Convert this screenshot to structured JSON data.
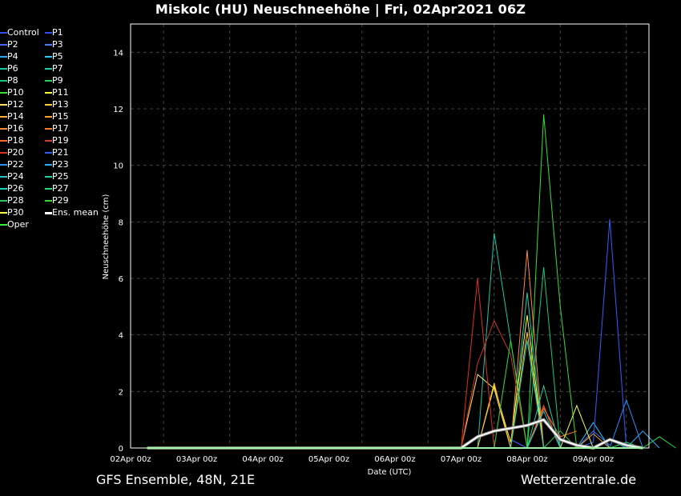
{
  "title": "Miskolc  (HU)  Neuschneehöhe | Fri, 02Apr2021 06Z",
  "footer_left": "GFS Ensemble, 48N, 21E",
  "footer_right": "Wetterzentrale.de",
  "chart_data": {
    "type": "line",
    "title": "Miskolc  (HU)  Neuschneehöhe | Fri, 02Apr2021 06Z",
    "xlabel": "Date (UTC)",
    "ylabel": "Neuschneehöhe (cm)",
    "ylim": [
      0,
      15
    ],
    "xlim_days": [
      0,
      7.75
    ],
    "x_ticks": [
      "02Apr 00z",
      "03Apr 00z",
      "04Apr 00z",
      "05Apr 00z",
      "06Apr 00z",
      "07Apr 00z",
      "08Apr 00z",
      "09Apr 00z"
    ],
    "y_ticks": [
      0,
      2,
      4,
      6,
      8,
      10,
      12,
      14
    ],
    "grid": true,
    "legend_position": "left",
    "series": [
      {
        "name": "Control",
        "color": "#2b4cff",
        "points": []
      },
      {
        "name": "P1",
        "color": "#2b4cff",
        "points": []
      },
      {
        "name": "P2",
        "color": "#3a6cff",
        "points": [
          [
            5.75,
            0.3
          ],
          [
            6.0,
            0
          ]
        ]
      },
      {
        "name": "P3",
        "color": "#3a7dff",
        "points": [
          [
            6.75,
            0
          ],
          [
            7.0,
            0.6
          ],
          [
            7.25,
            0.1
          ]
        ]
      },
      {
        "name": "P4",
        "color": "#2aa8ff",
        "points": [
          [
            7.0,
            0
          ],
          [
            7.25,
            0.3
          ],
          [
            7.5,
            0
          ]
        ]
      },
      {
        "name": "P5",
        "color": "#2ac6ff",
        "points": [
          [
            6.75,
            0
          ],
          [
            7.0,
            0.9
          ],
          [
            7.25,
            0
          ]
        ]
      },
      {
        "name": "P6",
        "color": "#1ac9a8",
        "points": [
          [
            5.25,
            0
          ],
          [
            5.5,
            7.6
          ],
          [
            5.75,
            3.8
          ],
          [
            6.0,
            0
          ]
        ]
      },
      {
        "name": "P7",
        "color": "#1ad0b0",
        "points": [
          [
            5.75,
            0
          ],
          [
            6.0,
            5.5
          ],
          [
            6.25,
            0
          ]
        ]
      },
      {
        "name": "P8",
        "color": "#18c878",
        "points": [
          [
            6.0,
            0
          ],
          [
            6.25,
            6.4
          ],
          [
            6.5,
            0
          ]
        ]
      },
      {
        "name": "P9",
        "color": "#22d84a",
        "points": [
          [
            7.75,
            0
          ],
          [
            8.0,
            0.4
          ],
          [
            8.25,
            0
          ]
        ]
      },
      {
        "name": "P10",
        "color": "#33e033",
        "points": [
          [
            6.0,
            0
          ],
          [
            6.25,
            11.8
          ],
          [
            6.5,
            5.0
          ],
          [
            6.75,
            0
          ]
        ]
      },
      {
        "name": "P11",
        "color": "#ffff33",
        "points": [
          [
            5.25,
            0
          ],
          [
            5.5,
            2.2
          ],
          [
            5.75,
            0.2
          ],
          [
            6.0,
            4.7
          ],
          [
            6.25,
            0
          ]
        ]
      },
      {
        "name": "P12",
        "color": "#ffe066",
        "points": [
          [
            5.0,
            0
          ],
          [
            5.25,
            2.6
          ],
          [
            5.5,
            2.1
          ],
          [
            5.75,
            0
          ]
        ]
      },
      {
        "name": "P13",
        "color": "#ffcc33",
        "points": [
          [
            5.75,
            0
          ],
          [
            6.0,
            4.1
          ],
          [
            6.25,
            0
          ]
        ]
      },
      {
        "name": "P14",
        "color": "#ffb030",
        "points": [
          [
            5.25,
            0
          ],
          [
            5.5,
            2.3
          ],
          [
            5.75,
            0
          ]
        ]
      },
      {
        "name": "P15",
        "color": "#ff9f2a",
        "points": [
          [
            6.75,
            0
          ],
          [
            7.0,
            0.5
          ],
          [
            7.25,
            0
          ]
        ]
      },
      {
        "name": "P16",
        "color": "#ff8a3a",
        "points": [
          [
            5.75,
            0
          ],
          [
            6.0,
            7.0
          ],
          [
            6.25,
            0
          ]
        ]
      },
      {
        "name": "P17",
        "color": "#ff7a2a",
        "points": [
          [
            6.0,
            0
          ],
          [
            6.25,
            1.4
          ],
          [
            6.5,
            0.4
          ],
          [
            6.75,
            0.6
          ]
        ]
      },
      {
        "name": "P18",
        "color": "#ff6a1a",
        "points": [
          [
            6.0,
            0
          ],
          [
            6.25,
            1.5
          ],
          [
            6.5,
            0
          ]
        ]
      },
      {
        "name": "P19",
        "color": "#d03a1a",
        "points": [
          [
            5.0,
            0
          ],
          [
            5.25,
            3.0
          ],
          [
            5.5,
            4.5
          ],
          [
            5.75,
            3.3
          ],
          [
            6.0,
            0
          ]
        ]
      },
      {
        "name": "P20",
        "color": "#e03020",
        "points": [
          [
            5.0,
            0
          ],
          [
            5.25,
            6.0
          ],
          [
            5.5,
            0
          ]
        ]
      },
      {
        "name": "P21",
        "color": "#3060ff",
        "points": [
          [
            6.75,
            0
          ],
          [
            7.0,
            0.2
          ],
          [
            7.25,
            8.1
          ],
          [
            7.5,
            0
          ]
        ]
      },
      {
        "name": "P22",
        "color": "#2a90ff",
        "points": [
          [
            7.25,
            0
          ],
          [
            7.5,
            1.7
          ],
          [
            7.75,
            0
          ]
        ]
      },
      {
        "name": "P23",
        "color": "#2ab0ff",
        "points": [
          [
            7.5,
            0
          ],
          [
            7.75,
            0.6
          ],
          [
            8.0,
            0
          ]
        ]
      },
      {
        "name": "P24",
        "color": "#2ac0d0",
        "points": [
          [
            6.0,
            0
          ],
          [
            6.25,
            1.3
          ],
          [
            6.5,
            0
          ]
        ]
      },
      {
        "name": "P25",
        "color": "#20d0a0",
        "points": [
          [
            6.0,
            0
          ],
          [
            6.25,
            2.2
          ],
          [
            6.5,
            0
          ]
        ]
      },
      {
        "name": "P26",
        "color": "#1ad0c0",
        "points": [
          [
            5.75,
            0
          ],
          [
            6.0,
            3.8
          ],
          [
            6.25,
            0
          ]
        ]
      },
      {
        "name": "P27",
        "color": "#20e070",
        "points": [
          [
            7.25,
            0
          ],
          [
            7.5,
            0.2
          ],
          [
            7.75,
            0
          ]
        ]
      },
      {
        "name": "P28",
        "color": "#30c860",
        "points": [
          [
            6.25,
            0
          ],
          [
            6.5,
            0.6
          ],
          [
            6.75,
            0
          ]
        ]
      },
      {
        "name": "P29",
        "color": "#33dd33",
        "points": [
          [
            5.5,
            0
          ],
          [
            5.75,
            3.8
          ],
          [
            6.0,
            0
          ]
        ]
      },
      {
        "name": "P30",
        "color": "#ffff44",
        "points": [
          [
            6.5,
            0
          ],
          [
            6.75,
            1.5
          ],
          [
            7.0,
            0
          ]
        ]
      },
      {
        "name": "Ens. mean",
        "color": "#ffffff",
        "points": [
          [
            0.25,
            0
          ],
          [
            5.0,
            0
          ],
          [
            5.25,
            0.4
          ],
          [
            5.5,
            0.6
          ],
          [
            5.75,
            0.7
          ],
          [
            6.0,
            0.8
          ],
          [
            6.25,
            1.0
          ],
          [
            6.5,
            0.3
          ],
          [
            6.75,
            0.1
          ],
          [
            7.0,
            0
          ],
          [
            7.25,
            0.3
          ],
          [
            7.5,
            0.1
          ],
          [
            7.75,
            0
          ]
        ]
      },
      {
        "name": "Oper",
        "color": "#33ee33",
        "points": [
          [
            0.25,
            0
          ],
          [
            7.75,
            0
          ]
        ]
      }
    ]
  }
}
